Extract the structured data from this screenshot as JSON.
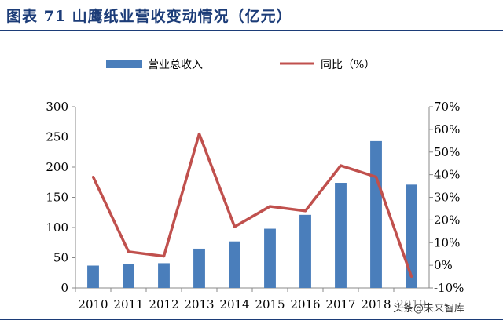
{
  "header": {
    "title": "图表 71 山鹰纸业营收变动情况（亿元）"
  },
  "watermark": "头条@未来智库",
  "colors": {
    "bar": "#4a7ebb",
    "line": "#c0504d",
    "title": "#1c3c78"
  },
  "chart_data": {
    "type": "bar+line",
    "categories": [
      "2010",
      "2011",
      "2012",
      "2013",
      "2014",
      "2015",
      "2016",
      "2017",
      "2018",
      "2019"
    ],
    "x_tick_labels": [
      "2010",
      "2011",
      "2012",
      "2013",
      "2014",
      "2015",
      "2016",
      "2017",
      "2018",
      "2019"
    ],
    "series": [
      {
        "name": "营业总收入",
        "type": "bar",
        "axis": "left",
        "values": [
          37,
          39,
          41,
          65,
          77,
          98,
          121,
          174,
          243,
          171
        ]
      },
      {
        "name": "同比（%）",
        "type": "line",
        "axis": "right",
        "values": [
          39,
          6,
          4,
          58,
          17,
          26,
          24,
          44,
          39,
          -5
        ]
      }
    ],
    "y_left": {
      "ylim": [
        0,
        300
      ],
      "ticks": [
        "0",
        "50",
        "100",
        "150",
        "200",
        "250",
        "300"
      ]
    },
    "y_right": {
      "ylim": [
        -10,
        70
      ],
      "ticks": [
        "-10%",
        "0%",
        "10%",
        "20%",
        "30%",
        "40%",
        "50%",
        "60%",
        "70%"
      ]
    },
    "legend_position": "top",
    "grid": false
  }
}
